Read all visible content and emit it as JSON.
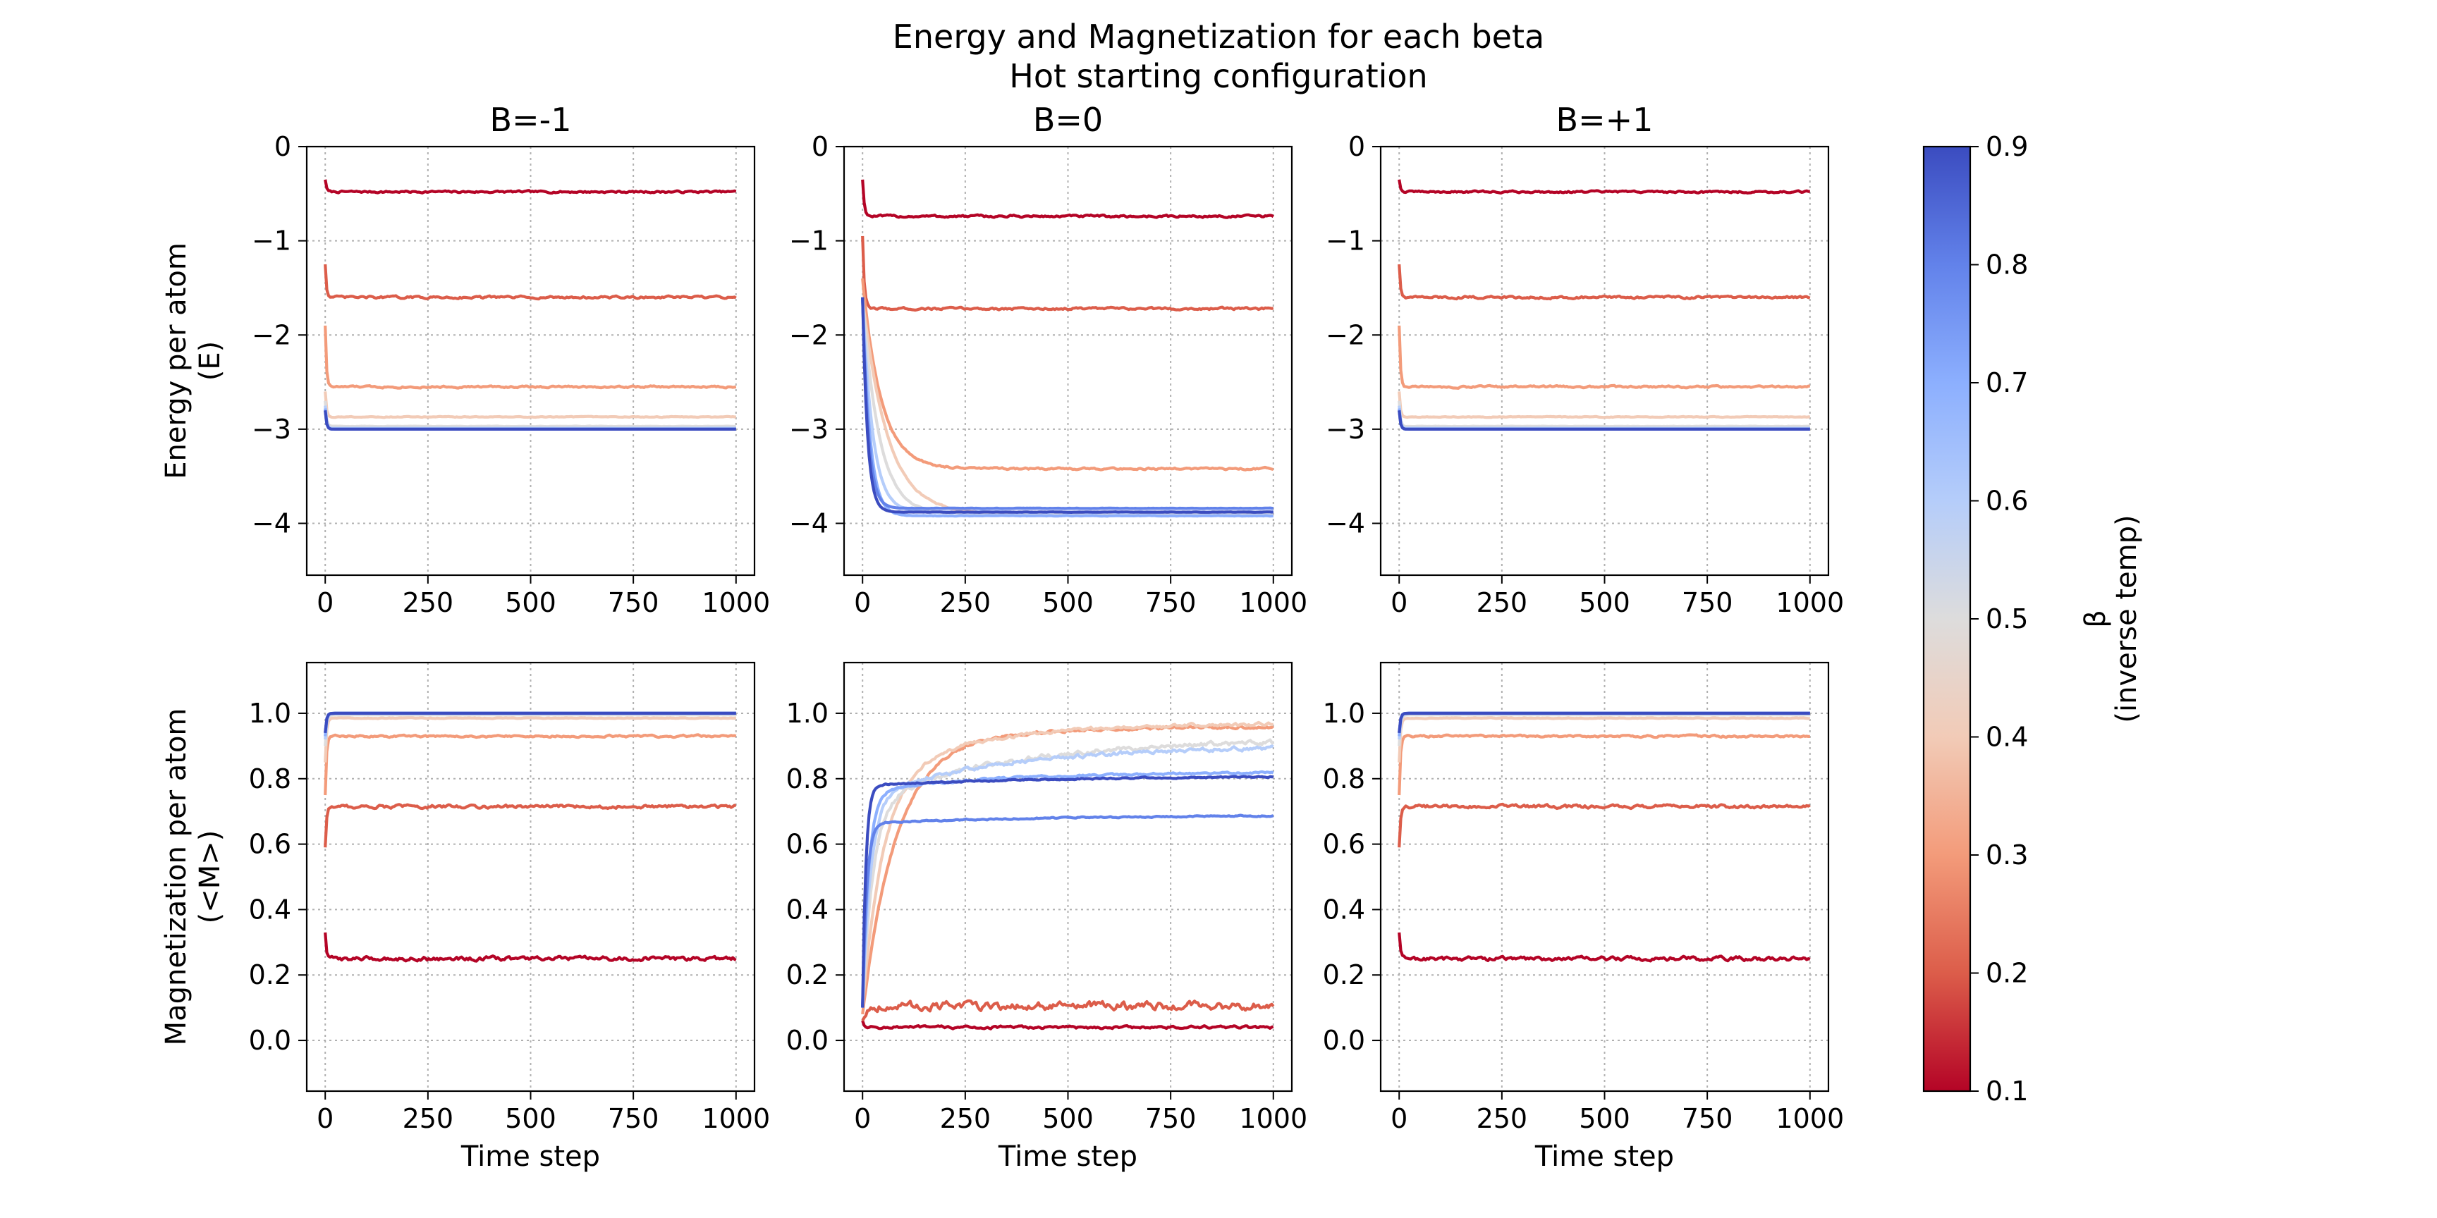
{
  "title": "Energy and Magnetization for each beta",
  "subtitle": "Hot starting configuration",
  "colorbar": {
    "label_line1": "β",
    "label_line2": "(inverse temp)",
    "range": [
      0.1,
      0.9
    ],
    "ticks": [
      "0.1",
      "0.2",
      "0.3",
      "0.4",
      "0.5",
      "0.6",
      "0.7",
      "0.8",
      "0.9"
    ],
    "colormap": "coolwarm (reversed: red = low β, blue = high β)"
  },
  "columns": [
    "B=-1",
    "B=0",
    "B=+1"
  ],
  "row_labels": {
    "energy": [
      "Energy per atom",
      "(E)"
    ],
    "magnetization": [
      "Magnetization per atom",
      "(<M>)"
    ]
  },
  "xlabel": "Time step",
  "x_ticks": [
    "0",
    "250",
    "500",
    "750",
    "1000"
  ],
  "energy_ticks": [
    "0",
    "−1",
    "−2",
    "−3",
    "−4"
  ],
  "mag_ticks": [
    "0.0",
    "0.2",
    "0.4",
    "0.6",
    "0.8",
    "1.0"
  ],
  "chart_data": [
    {
      "type": "line",
      "id": "energy-bneg1",
      "title": "B=-1",
      "xlabel": "",
      "ylabel": "Energy per atom (E)",
      "xlim": [
        -45,
        1045
      ],
      "ylim": [
        -4.55,
        0
      ],
      "grid": true,
      "series": [
        {
          "beta": 0.1,
          "color": "#b40426",
          "start": -0.35,
          "end": -0.48,
          "tau": 3,
          "noise": 0.01
        },
        {
          "beta": 0.2,
          "color": "#dc5d4a",
          "start": -1.25,
          "end": -1.6,
          "tau": 3,
          "noise": 0.012
        },
        {
          "beta": 0.3,
          "color": "#f39b7a",
          "start": -1.9,
          "end": -2.55,
          "tau": 3,
          "noise": 0.01
        },
        {
          "beta": 0.4,
          "color": "#f2cbb7",
          "start": -2.6,
          "end": -2.87,
          "tau": 3,
          "noise": 0.004
        },
        {
          "beta": 0.5,
          "color": "#dddcdc",
          "start": -2.7,
          "end": -2.97,
          "tau": 3,
          "noise": 0.002
        },
        {
          "beta": 0.6,
          "color": "#b5cdfa",
          "start": -2.75,
          "end": -2.99,
          "tau": 3,
          "noise": 0.001
        },
        {
          "beta": 0.7,
          "color": "#8caffe",
          "start": -2.78,
          "end": -3.0,
          "tau": 3,
          "noise": 0
        },
        {
          "beta": 0.8,
          "color": "#6282ea",
          "start": -2.8,
          "end": -3.0,
          "tau": 3,
          "noise": 0
        },
        {
          "beta": 0.9,
          "color": "#3b4cc0",
          "start": -2.8,
          "end": -3.0,
          "tau": 3,
          "noise": 0
        }
      ]
    },
    {
      "type": "line",
      "id": "energy-b0",
      "title": "B=0",
      "xlabel": "",
      "ylabel": "",
      "xlim": [
        -45,
        1045
      ],
      "ylim": [
        -4.55,
        0
      ],
      "grid": true,
      "series": [
        {
          "beta": 0.1,
          "color": "#b40426",
          "start": -0.35,
          "end": -0.74,
          "tau": 4,
          "noise": 0.012
        },
        {
          "beta": 0.2,
          "color": "#dc5d4a",
          "start": -0.95,
          "end": -1.72,
          "tau": 4,
          "noise": 0.012
        },
        {
          "beta": 0.3,
          "color": "#f39b7a",
          "start": -1.4,
          "end": -3.42,
          "tau": 45,
          "noise": 0.01
        },
        {
          "beta": 0.4,
          "color": "#f2cbb7",
          "start": -1.6,
          "end": -3.9,
          "tau": 60,
          "noise": 0.008
        },
        {
          "beta": 0.5,
          "color": "#dddcdc",
          "start": -1.6,
          "end": -3.9,
          "tau": 40,
          "noise": 0.006
        },
        {
          "beta": 0.6,
          "color": "#b5cdfa",
          "start": -1.6,
          "end": -3.88,
          "tau": 25,
          "noise": 0.004
        },
        {
          "beta": 0.7,
          "color": "#8caffe",
          "start": -1.6,
          "end": -3.92,
          "tau": 18,
          "noise": 0.003
        },
        {
          "beta": 0.8,
          "color": "#6282ea",
          "start": -1.6,
          "end": -3.84,
          "tau": 14,
          "noise": 0.002
        },
        {
          "beta": 0.9,
          "color": "#3b4cc0",
          "start": -1.6,
          "end": -3.88,
          "tau": 12,
          "noise": 0.002
        }
      ]
    },
    {
      "type": "line",
      "id": "energy-bpos1",
      "title": "B=+1",
      "xlabel": "",
      "ylabel": "",
      "xlim": [
        -45,
        1045
      ],
      "ylim": [
        -4.55,
        0
      ],
      "grid": true,
      "series": [
        {
          "beta": 0.1,
          "color": "#b40426",
          "start": -0.35,
          "end": -0.48,
          "tau": 3,
          "noise": 0.01
        },
        {
          "beta": 0.2,
          "color": "#dc5d4a",
          "start": -1.25,
          "end": -1.6,
          "tau": 3,
          "noise": 0.012
        },
        {
          "beta": 0.3,
          "color": "#f39b7a",
          "start": -1.9,
          "end": -2.55,
          "tau": 3,
          "noise": 0.01
        },
        {
          "beta": 0.4,
          "color": "#f2cbb7",
          "start": -2.6,
          "end": -2.87,
          "tau": 3,
          "noise": 0.004
        },
        {
          "beta": 0.5,
          "color": "#dddcdc",
          "start": -2.7,
          "end": -2.97,
          "tau": 3,
          "noise": 0.002
        },
        {
          "beta": 0.6,
          "color": "#b5cdfa",
          "start": -2.75,
          "end": -2.99,
          "tau": 3,
          "noise": 0.001
        },
        {
          "beta": 0.7,
          "color": "#8caffe",
          "start": -2.78,
          "end": -3.0,
          "tau": 3,
          "noise": 0
        },
        {
          "beta": 0.8,
          "color": "#6282ea",
          "start": -2.8,
          "end": -3.0,
          "tau": 3,
          "noise": 0
        },
        {
          "beta": 0.9,
          "color": "#3b4cc0",
          "start": -2.8,
          "end": -3.0,
          "tau": 3,
          "noise": 0
        }
      ]
    },
    {
      "type": "line",
      "id": "mag-bneg1",
      "title": "",
      "xlabel": "Time step",
      "ylabel": "Magnetization per atom (<M>)",
      "xlim": [
        -45,
        1045
      ],
      "ylim": [
        -0.155,
        1.155
      ],
      "grid": true,
      "series": [
        {
          "beta": 0.1,
          "color": "#b40426",
          "start": 0.33,
          "end": 0.25,
          "tau": 3,
          "noise": 0.006
        },
        {
          "beta": 0.2,
          "color": "#dc5d4a",
          "start": 0.59,
          "end": 0.715,
          "tau": 3,
          "noise": 0.005
        },
        {
          "beta": 0.3,
          "color": "#f39b7a",
          "start": 0.75,
          "end": 0.93,
          "tau": 3,
          "noise": 0.003
        },
        {
          "beta": 0.4,
          "color": "#f2cbb7",
          "start": 0.85,
          "end": 0.985,
          "tau": 3,
          "noise": 0.001
        },
        {
          "beta": 0.5,
          "color": "#dddcdc",
          "start": 0.9,
          "end": 0.995,
          "tau": 3,
          "noise": 0
        },
        {
          "beta": 0.6,
          "color": "#b5cdfa",
          "start": 0.92,
          "end": 0.999,
          "tau": 3,
          "noise": 0
        },
        {
          "beta": 0.7,
          "color": "#8caffe",
          "start": 0.93,
          "end": 1.0,
          "tau": 3,
          "noise": 0
        },
        {
          "beta": 0.8,
          "color": "#6282ea",
          "start": 0.94,
          "end": 1.0,
          "tau": 3,
          "noise": 0
        },
        {
          "beta": 0.9,
          "color": "#3b4cc0",
          "start": 0.94,
          "end": 1.0,
          "tau": 3,
          "noise": 0
        }
      ]
    },
    {
      "type": "line",
      "id": "mag-b0",
      "title": "",
      "xlabel": "Time step",
      "ylabel": "",
      "xlim": [
        -45,
        1045
      ],
      "ylim": [
        -0.155,
        1.155
      ],
      "grid": true,
      "series": [
        {
          "beta": 0.1,
          "color": "#b40426",
          "start": 0.06,
          "end": 0.04,
          "tau": 5,
          "noise": 0.004
        },
        {
          "beta": 0.2,
          "color": "#dc5d4a",
          "start": 0.06,
          "end": 0.105,
          "tau": 10,
          "noise": 0.012
        },
        {
          "beta": 0.3,
          "color": "#f39b7a",
          "start": 0.08,
          "mid": 0.9,
          "tau": 80,
          "end": 0.96,
          "tau2": 300,
          "noise": 0.004
        },
        {
          "beta": 0.4,
          "color": "#f2cbb7",
          "start": 0.1,
          "mid": 0.8,
          "tau": 50,
          "end": 0.97,
          "tau2": 250,
          "noise": 0.005
        },
        {
          "beta": 0.5,
          "color": "#dddcdc",
          "start": 0.1,
          "mid": 0.72,
          "tau": 25,
          "end": 0.92,
          "tau2": 330,
          "noise": 0.007
        },
        {
          "beta": 0.6,
          "color": "#b5cdfa",
          "start": 0.1,
          "mid": 0.74,
          "tau": 20,
          "end": 0.9,
          "tau2": 320,
          "noise": 0.006
        },
        {
          "beta": 0.7,
          "color": "#8caffe",
          "start": 0.1,
          "mid": 0.76,
          "tau": 15,
          "end": 0.82,
          "tau2": 300,
          "noise": 0.003
        },
        {
          "beta": 0.8,
          "color": "#6282ea",
          "start": 0.1,
          "mid": 0.665,
          "tau": 10,
          "end": 0.69,
          "tau2": 500,
          "noise": 0.002
        },
        {
          "beta": 0.9,
          "color": "#3b4cc0",
          "start": 0.1,
          "mid": 0.78,
          "tau": 8,
          "end": 0.81,
          "tau2": 500,
          "noise": 0.002
        }
      ]
    },
    {
      "type": "line",
      "id": "mag-bpos1",
      "title": "",
      "xlabel": "Time step",
      "ylabel": "",
      "xlim": [
        -45,
        1045
      ],
      "ylim": [
        -0.155,
        1.155
      ],
      "grid": true,
      "series": [
        {
          "beta": 0.1,
          "color": "#b40426",
          "start": 0.33,
          "end": 0.25,
          "tau": 3,
          "noise": 0.006
        },
        {
          "beta": 0.2,
          "color": "#dc5d4a",
          "start": 0.59,
          "end": 0.715,
          "tau": 3,
          "noise": 0.005
        },
        {
          "beta": 0.3,
          "color": "#f39b7a",
          "start": 0.75,
          "end": 0.93,
          "tau": 3,
          "noise": 0.003
        },
        {
          "beta": 0.4,
          "color": "#f2cbb7",
          "start": 0.85,
          "end": 0.985,
          "tau": 3,
          "noise": 0.001
        },
        {
          "beta": 0.5,
          "color": "#dddcdc",
          "start": 0.9,
          "end": 0.995,
          "tau": 3,
          "noise": 0
        },
        {
          "beta": 0.6,
          "color": "#b5cdfa",
          "start": 0.92,
          "end": 0.999,
          "tau": 3,
          "noise": 0
        },
        {
          "beta": 0.7,
          "color": "#8caffe",
          "start": 0.93,
          "end": 1.0,
          "tau": 3,
          "noise": 0
        },
        {
          "beta": 0.8,
          "color": "#6282ea",
          "start": 0.94,
          "end": 1.0,
          "tau": 3,
          "noise": 0
        },
        {
          "beta": 0.9,
          "color": "#3b4cc0",
          "start": 0.94,
          "end": 1.0,
          "tau": 3,
          "noise": 0
        }
      ]
    }
  ]
}
